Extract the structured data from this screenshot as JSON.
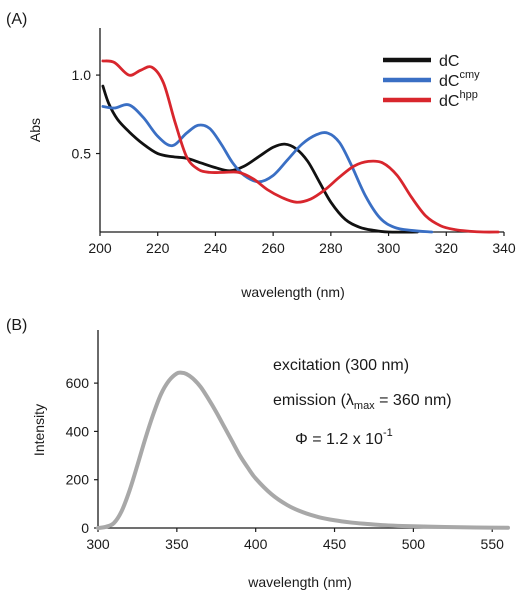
{
  "chart_data": [
    {
      "panel": "(A)",
      "type": "line",
      "xlabel": "wavelength (nm)",
      "ylabel": "Abs",
      "xlim": [
        200,
        340
      ],
      "ylim": [
        0,
        1.3
      ],
      "x_ticks": [
        "200",
        "220",
        "240",
        "260",
        "280",
        "300",
        "320",
        "340"
      ],
      "y_ticks": [
        "0.5",
        "1.0"
      ],
      "grid": false,
      "legend": "top-right",
      "series": [
        {
          "name": "dC",
          "base": "dC",
          "sup": "",
          "color": "#111111",
          "x": [
            201,
            203,
            206,
            210,
            215,
            220,
            225,
            230,
            235,
            240,
            245,
            250,
            255,
            260,
            264,
            268,
            272,
            276,
            280,
            285,
            290,
            295,
            300,
            310
          ],
          "y": [
            0.93,
            0.82,
            0.72,
            0.64,
            0.56,
            0.5,
            0.48,
            0.47,
            0.44,
            0.41,
            0.39,
            0.42,
            0.48,
            0.54,
            0.56,
            0.53,
            0.45,
            0.32,
            0.19,
            0.08,
            0.03,
            0.01,
            0.0,
            0.0
          ]
        },
        {
          "name": "dCcmy",
          "base": "dC",
          "sup": "cmy",
          "color": "#3a6fc4",
          "x": [
            201,
            205,
            210,
            215,
            220,
            225,
            230,
            234,
            238,
            242,
            246,
            250,
            255,
            260,
            265,
            270,
            275,
            279,
            283,
            287,
            292,
            297,
            302,
            308,
            315
          ],
          "y": [
            0.8,
            0.79,
            0.81,
            0.73,
            0.61,
            0.55,
            0.63,
            0.68,
            0.66,
            0.56,
            0.44,
            0.36,
            0.32,
            0.36,
            0.46,
            0.56,
            0.62,
            0.63,
            0.57,
            0.43,
            0.23,
            0.09,
            0.03,
            0.01,
            0.0
          ]
        },
        {
          "name": "dChpp",
          "base": "dC",
          "sup": "hpp",
          "color": "#d8262d",
          "x": [
            201,
            205,
            210,
            214,
            218,
            222,
            226,
            230,
            234,
            238,
            243,
            248,
            253,
            258,
            263,
            268,
            273,
            278,
            283,
            288,
            293,
            298,
            303,
            308,
            313,
            318,
            323,
            328,
            333,
            338
          ],
          "y": [
            1.09,
            1.08,
            1.0,
            1.03,
            1.05,
            0.95,
            0.7,
            0.48,
            0.4,
            0.38,
            0.38,
            0.38,
            0.34,
            0.27,
            0.22,
            0.19,
            0.21,
            0.27,
            0.35,
            0.42,
            0.45,
            0.44,
            0.36,
            0.22,
            0.1,
            0.04,
            0.015,
            0.005,
            0.0,
            0.0
          ]
        }
      ]
    },
    {
      "panel": "(B)",
      "type": "line",
      "xlabel": "wavelength (nm)",
      "ylabel": "Intensity",
      "xlim": [
        300,
        560
      ],
      "ylim": [
        0,
        820
      ],
      "x_ticks": [
        "300",
        "350",
        "400",
        "450",
        "500",
        "550"
      ],
      "y_ticks": [
        "0",
        "200",
        "400",
        "600"
      ],
      "grid": false,
      "annotations": {
        "line1": "excitation (300 nm)",
        "line2_prefix": "emission (λ",
        "line2_sub": "max",
        "line2_suffix": " = 360 nm)",
        "line3_base": "Φ = 1.2 x 10",
        "line3_sup": "-1"
      },
      "series": [
        {
          "name": "",
          "color": "#a8a8a8",
          "x": [
            300,
            305,
            310,
            315,
            320,
            325,
            330,
            335,
            340,
            345,
            350,
            353,
            356,
            360,
            365,
            370,
            375,
            380,
            385,
            390,
            395,
            400,
            410,
            420,
            430,
            440,
            450,
            460,
            470,
            480,
            490,
            500,
            520,
            540,
            560
          ],
          "y": [
            0,
            5,
            20,
            70,
            155,
            260,
            370,
            470,
            555,
            610,
            640,
            643,
            638,
            620,
            585,
            535,
            480,
            420,
            360,
            300,
            250,
            205,
            140,
            95,
            65,
            45,
            32,
            23,
            17,
            12,
            9,
            7,
            4,
            2,
            1
          ]
        }
      ]
    }
  ]
}
